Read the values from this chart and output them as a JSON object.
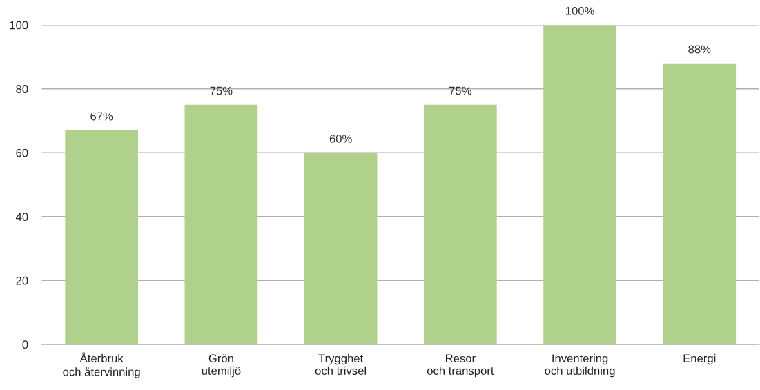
{
  "chart_data": {
    "type": "bar",
    "categories": [
      "Återbruk\noch återvinning",
      "Grön\nutemiljö",
      "Trygghet\noch trivsel",
      "Resor\noch transport",
      "Inventering\noch utbildning",
      "Energi"
    ],
    "values": [
      67,
      75,
      60,
      75,
      100,
      88
    ],
    "value_labels": [
      "67%",
      "75%",
      "60%",
      "75%",
      "100%",
      "88%"
    ],
    "color": "#b0d18b",
    "ylim": [
      0,
      100
    ],
    "yticks": [
      0,
      20,
      40,
      60,
      80,
      100
    ],
    "grid": "y"
  }
}
